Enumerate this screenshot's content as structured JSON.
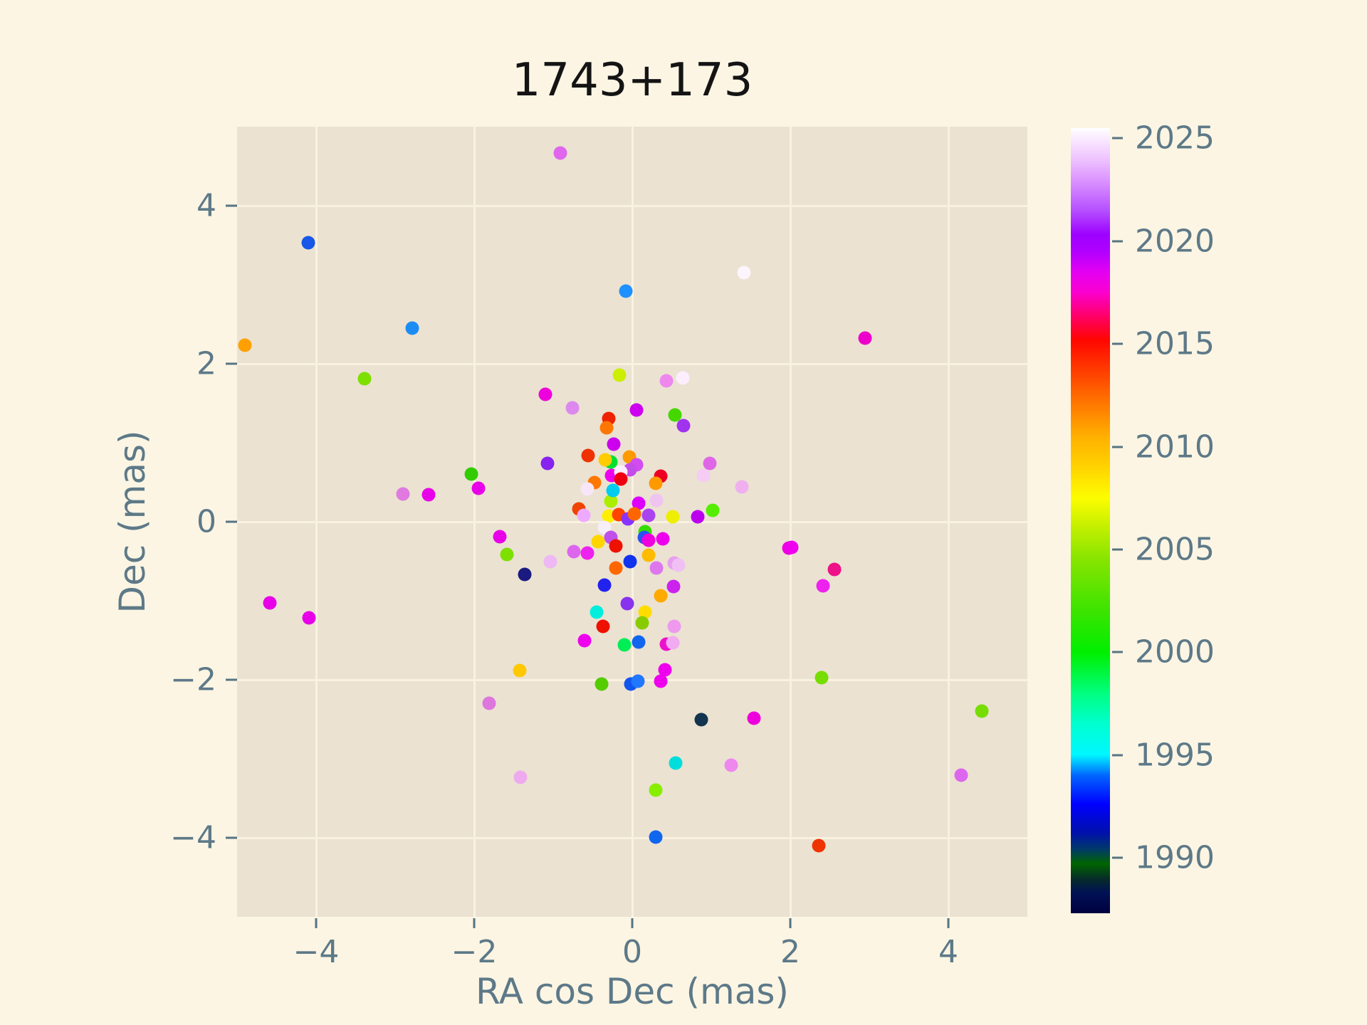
{
  "title": "1743+173",
  "chart_data": {
    "type": "scatter",
    "title": "1743+173",
    "xlabel": "RA cos Dec (mas)",
    "ylabel": "Dec (mas)",
    "xlim": [
      -5,
      5
    ],
    "ylim": [
      -5,
      5
    ],
    "grid": true,
    "x_tick_values": [
      -4,
      -2,
      0,
      2,
      4
    ],
    "x_tick_labels": [
      "−4",
      "−2",
      "0",
      "2",
      "4"
    ],
    "y_tick_values": [
      4,
      2,
      0,
      -2,
      -4
    ],
    "y_tick_labels": [
      "4",
      "2",
      "0",
      "−2",
      "−4"
    ],
    "background_color": "#ebe2d1",
    "page_color": "#fcf5e3",
    "grid_color": "#f9f2e1",
    "label_color": "#5d7988",
    "title_color": "#141414",
    "colorbar": {
      "meaning": "epoch year",
      "min_year": 1987.3,
      "max_year": 2025.5,
      "tick_years": [
        2025,
        2020,
        2015,
        2010,
        2005,
        2000,
        1995,
        1990
      ],
      "tick_labels": [
        "2025",
        "2020",
        "2015",
        "2010",
        "2005",
        "2000",
        "1995",
        "1990"
      ],
      "gradient_stops": [
        [
          0,
          "#000040"
        ],
        [
          2.6,
          "#001155"
        ],
        [
          4.4,
          "#062c28"
        ],
        [
          6.3,
          "#006400"
        ],
        [
          8.1,
          "#003c66"
        ],
        [
          10.2,
          "#0011aa"
        ],
        [
          13.9,
          "#0000ff"
        ],
        [
          17.5,
          "#0064ff"
        ],
        [
          20.2,
          "#00f7ff"
        ],
        [
          24.1,
          "#00ffd0"
        ],
        [
          28.0,
          "#00ff80"
        ],
        [
          33.2,
          "#00ef00"
        ],
        [
          38.5,
          "#3ce400"
        ],
        [
          45.0,
          "#86e400"
        ],
        [
          49.0,
          "#c0ef00"
        ],
        [
          52.9,
          "#fdfd00"
        ],
        [
          56.8,
          "#ffd300"
        ],
        [
          60.7,
          "#ffb000"
        ],
        [
          64.7,
          "#ff7a00"
        ],
        [
          69.4,
          "#ff3800"
        ],
        [
          73.0,
          "#ff0600"
        ],
        [
          75.9,
          "#ff0062"
        ],
        [
          79.1,
          "#fb00d0"
        ],
        [
          81.7,
          "#e300f2"
        ],
        [
          84.3,
          "#b000ff"
        ],
        [
          86.4,
          "#9d00ff"
        ],
        [
          89.5,
          "#b54fff"
        ],
        [
          92.9,
          "#d88cff"
        ],
        [
          96.1,
          "#efc4ff"
        ],
        [
          100,
          "#ffffff"
        ]
      ]
    },
    "points": [
      {
        "x": -0.91,
        "y": 4.67,
        "c": "#e066ee"
      },
      {
        "x": -4.1,
        "y": 3.53,
        "c": "#1857e8"
      },
      {
        "x": 1.41,
        "y": 3.15,
        "c": "#fdf5fd"
      },
      {
        "x": -0.08,
        "y": 2.92,
        "c": "#1e90ff"
      },
      {
        "x": -2.78,
        "y": 2.45,
        "c": "#1c8cf5"
      },
      {
        "x": -4.9,
        "y": 2.23,
        "c": "#ffa000"
      },
      {
        "x": -3.39,
        "y": 1.81,
        "c": "#7de000"
      },
      {
        "x": -2.04,
        "y": 0.6,
        "c": "#33cc00"
      },
      {
        "x": -1.95,
        "y": 0.42,
        "c": "#e800e8"
      },
      {
        "x": -2.9,
        "y": 0.35,
        "c": "#e07ae0"
      },
      {
        "x": -2.58,
        "y": 0.34,
        "c": "#e800e8"
      },
      {
        "x": -1.68,
        "y": -0.19,
        "c": "#e800e8"
      },
      {
        "x": -1.59,
        "y": -0.41,
        "c": "#7de000"
      },
      {
        "x": -1.36,
        "y": -0.67,
        "c": "#1a1a80"
      },
      {
        "x": -4.59,
        "y": -1.03,
        "c": "#e800e8"
      },
      {
        "x": -4.09,
        "y": -1.22,
        "c": "#e800e8"
      },
      {
        "x": -1.81,
        "y": -2.3,
        "c": "#dd77dd"
      },
      {
        "x": -1.1,
        "y": 1.61,
        "c": "#ee00dd"
      },
      {
        "x": -0.16,
        "y": 1.86,
        "c": "#ccee00"
      },
      {
        "x": 0.43,
        "y": 1.78,
        "c": "#ee88ee"
      },
      {
        "x": 0.64,
        "y": 1.82,
        "c": "#fdeeff"
      },
      {
        "x": -0.76,
        "y": 1.44,
        "c": "#dd88ee"
      },
      {
        "x": 0.05,
        "y": 1.41,
        "c": "#cc00ee"
      },
      {
        "x": 0.54,
        "y": 1.35,
        "c": "#44d800"
      },
      {
        "x": -0.3,
        "y": 1.31,
        "c": "#ee2200"
      },
      {
        "x": -0.32,
        "y": 1.19,
        "c": "#ff7700"
      },
      {
        "x": -0.23,
        "y": 0.98,
        "c": "#cc00ee"
      },
      {
        "x": -0.56,
        "y": 0.84,
        "c": "#ee3300"
      },
      {
        "x": -1.07,
        "y": 0.74,
        "c": "#8822ee"
      },
      {
        "x": -0.27,
        "y": 0.76,
        "c": "#00e033"
      },
      {
        "x": -0.34,
        "y": 0.78,
        "c": "#ffcc00"
      },
      {
        "x": -0.04,
        "y": 0.82,
        "c": "#ff9900"
      },
      {
        "x": 0.05,
        "y": 0.72,
        "c": "#d24cf0"
      },
      {
        "x": -0.03,
        "y": 0.66,
        "c": "#c44ce8"
      },
      {
        "x": -0.26,
        "y": 0.59,
        "c": "#ee00ee"
      },
      {
        "x": -0.14,
        "y": 0.63,
        "c": "#fdeeff"
      },
      {
        "x": -0.14,
        "y": 0.54,
        "c": "#ee0011"
      },
      {
        "x": -0.48,
        "y": 0.5,
        "c": "#ff7700"
      },
      {
        "x": -0.57,
        "y": 0.41,
        "c": "#f8e6f8"
      },
      {
        "x": 0.36,
        "y": 0.58,
        "c": "#ee0022"
      },
      {
        "x": 0.3,
        "y": 0.49,
        "c": "#ff9900"
      },
      {
        "x": -0.27,
        "y": 0.26,
        "c": "#aaee00"
      },
      {
        "x": 0.08,
        "y": 0.23,
        "c": "#dd00ff"
      },
      {
        "x": -0.24,
        "y": 0.4,
        "c": "#00ccee"
      },
      {
        "x": 0.31,
        "y": 0.27,
        "c": "#f0c4f0"
      },
      {
        "x": -0.3,
        "y": 0.07,
        "c": "#ffee00"
      },
      {
        "x": -0.68,
        "y": 0.16,
        "c": "#ee4400"
      },
      {
        "x": 0.21,
        "y": 0.08,
        "c": "#aa44ee"
      },
      {
        "x": 0.65,
        "y": 1.22,
        "c": "#a033ee"
      },
      {
        "x": 0.98,
        "y": 0.74,
        "c": "#e066e8"
      },
      {
        "x": 0.9,
        "y": 0.59,
        "c": "#f5ccf5"
      },
      {
        "x": 1.39,
        "y": 0.44,
        "c": "#f0b0f0"
      },
      {
        "x": 1.02,
        "y": 0.14,
        "c": "#55ee00"
      },
      {
        "x": 0.83,
        "y": 0.06,
        "c": "#bb00ee"
      },
      {
        "x": 0.51,
        "y": 0.06,
        "c": "#eeee00"
      },
      {
        "x": 1.98,
        "y": -0.33,
        "c": "#ee00dd"
      },
      {
        "x": 0.53,
        "y": -0.52,
        "c": "#e8a0ee"
      },
      {
        "x": 0.59,
        "y": -0.55,
        "c": "#f0c0f5"
      },
      {
        "x": 0.53,
        "y": -1.32,
        "c": "#ee99ee"
      },
      {
        "x": -0.61,
        "y": 0.08,
        "c": "#eeaaff"
      },
      {
        "x": -0.17,
        "y": 0.09,
        "c": "#ff4400"
      },
      {
        "x": -0.05,
        "y": 0.04,
        "c": "#8833ff"
      },
      {
        "x": 0.03,
        "y": 0.1,
        "c": "#ff6600"
      },
      {
        "x": 0.16,
        "y": -0.13,
        "c": "#33dd00"
      },
      {
        "x": 0.15,
        "y": -0.2,
        "c": "#2952f0"
      },
      {
        "x": 0.21,
        "y": -0.23,
        "c": "#ee00dd"
      },
      {
        "x": 0.39,
        "y": -0.22,
        "c": "#ee00ee"
      },
      {
        "x": -0.35,
        "y": -0.07,
        "c": "#f8eef8"
      },
      {
        "x": -0.27,
        "y": -0.2,
        "c": "#c050e8"
      },
      {
        "x": -0.43,
        "y": -0.25,
        "c": "#ffd500"
      },
      {
        "x": -0.21,
        "y": -0.31,
        "c": "#ee1100"
      },
      {
        "x": -0.74,
        "y": -0.38,
        "c": "#dd66ee"
      },
      {
        "x": -0.57,
        "y": -0.4,
        "c": "#ee22ee"
      },
      {
        "x": -1.04,
        "y": -0.5,
        "c": "#eeb8f5"
      },
      {
        "x": 0.21,
        "y": -0.42,
        "c": "#ffbb00"
      },
      {
        "x": 0.31,
        "y": -0.59,
        "c": "#dd77ee"
      },
      {
        "x": -0.21,
        "y": -0.59,
        "c": "#ff6600"
      },
      {
        "x": -0.03,
        "y": -0.5,
        "c": "#1133ee"
      },
      {
        "x": -0.35,
        "y": -0.8,
        "c": "#2222ee"
      },
      {
        "x": 0.52,
        "y": -0.82,
        "c": "#cc22ee"
      },
      {
        "x": 0.36,
        "y": -0.94,
        "c": "#ffaa00"
      },
      {
        "x": -0.06,
        "y": -1.04,
        "c": "#8833ee"
      },
      {
        "x": -0.45,
        "y": -1.14,
        "c": "#00eedd"
      },
      {
        "x": 0.16,
        "y": -1.14,
        "c": "#ffdd00"
      },
      {
        "x": -0.37,
        "y": -1.32,
        "c": "#ee1100"
      },
      {
        "x": 0.13,
        "y": -1.28,
        "c": "#88cc00"
      },
      {
        "x": -0.6,
        "y": -1.5,
        "c": "#ee00ee"
      },
      {
        "x": -0.1,
        "y": -1.56,
        "c": "#00ee55"
      },
      {
        "x": 0.08,
        "y": -1.52,
        "c": "#1166ee"
      },
      {
        "x": 0.43,
        "y": -1.55,
        "c": "#ee11cc"
      },
      {
        "x": 0.51,
        "y": -1.53,
        "c": "#f2aaf2"
      },
      {
        "x": -1.42,
        "y": -1.88,
        "c": "#ffc800"
      },
      {
        "x": -0.39,
        "y": -2.05,
        "c": "#55cc00"
      },
      {
        "x": -0.02,
        "y": -2.05,
        "c": "#1155ee"
      },
      {
        "x": 0.07,
        "y": -2.02,
        "c": "#2277ff"
      },
      {
        "x": 0.41,
        "y": -1.87,
        "c": "#ee00ee"
      },
      {
        "x": 0.36,
        "y": -2.02,
        "c": "#ee00ee"
      },
      {
        "x": 0.87,
        "y": -2.5,
        "c": "#12344f"
      },
      {
        "x": 1.54,
        "y": -2.49,
        "c": "#ee00dd"
      },
      {
        "x": 2.95,
        "y": 2.32,
        "c": "#ee00cc"
      },
      {
        "x": 2.02,
        "y": -0.32,
        "c": "#ee00ee"
      },
      {
        "x": 2.56,
        "y": -0.6,
        "c": "#ee1188"
      },
      {
        "x": 2.41,
        "y": -0.81,
        "c": "#ee22ee"
      },
      {
        "x": 2.4,
        "y": -1.97,
        "c": "#77dd00"
      },
      {
        "x": 4.42,
        "y": -2.4,
        "c": "#77dd00"
      },
      {
        "x": 0.55,
        "y": -3.05,
        "c": "#00dddd"
      },
      {
        "x": 1.25,
        "y": -3.08,
        "c": "#ee88ee"
      },
      {
        "x": -1.41,
        "y": -3.23,
        "c": "#eeaaee"
      },
      {
        "x": 4.16,
        "y": -3.21,
        "c": "#dd66ee"
      },
      {
        "x": 0.3,
        "y": -3.4,
        "c": "#88ee00"
      },
      {
        "x": 0.3,
        "y": -3.99,
        "c": "#1166ee"
      },
      {
        "x": 2.36,
        "y": -4.1,
        "c": "#ee3300"
      }
    ]
  }
}
